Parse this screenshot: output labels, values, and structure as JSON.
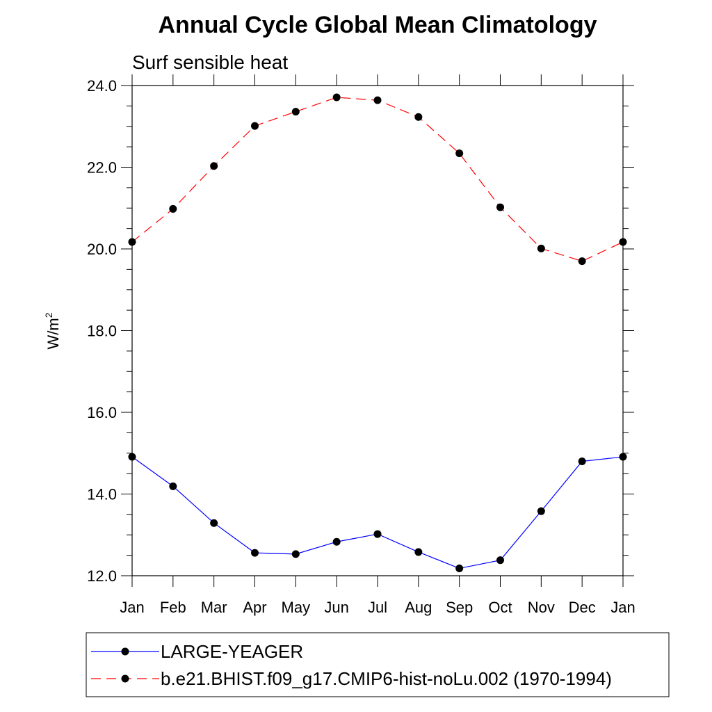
{
  "chart_data": {
    "type": "line",
    "title": "Annual Cycle Global Mean Climatology",
    "subtitle": "Surf sensible heat",
    "ylabel": "W/m",
    "ylabel_superscript": "2",
    "xlabel": "",
    "categories": [
      "Jan",
      "Feb",
      "Mar",
      "Apr",
      "May",
      "Jun",
      "Jul",
      "Aug",
      "Sep",
      "Oct",
      "Nov",
      "Dec",
      "Jan"
    ],
    "ylim": [
      12.0,
      24.0
    ],
    "y_ticks": [
      "12.0",
      "14.0",
      "16.0",
      "18.0",
      "20.0",
      "22.0",
      "24.0"
    ],
    "grid": false,
    "legend_position": "bottom",
    "series": [
      {
        "name": "LARGE-YEAGER",
        "color": "#0000ff",
        "line_style": "solid",
        "marker": "filled-circle",
        "values": [
          14.91,
          14.19,
          13.29,
          12.56,
          12.53,
          12.83,
          13.02,
          12.58,
          12.18,
          12.38,
          13.58,
          14.8,
          14.91
        ]
      },
      {
        "name": "b.e21.BHIST.f09_g17.CMIP6-hist-noLu.002 (1970-1994)",
        "color": "#ff0000",
        "line_style": "dashed",
        "marker": "filled-circle",
        "values": [
          20.17,
          20.98,
          22.03,
          23.01,
          23.36,
          23.71,
          23.64,
          23.23,
          22.34,
          21.02,
          20.01,
          19.7,
          20.17
        ]
      }
    ]
  }
}
